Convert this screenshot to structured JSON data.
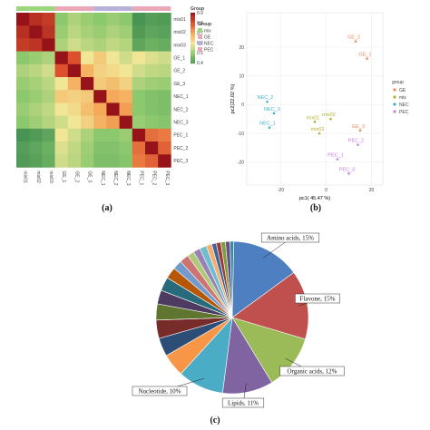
{
  "panels": [
    "(a)",
    "(b)",
    "(c)"
  ],
  "heatmap": {
    "rows": [
      "mix01",
      "mix02",
      "mix03",
      "GE_1",
      "GE_2",
      "GE_3",
      "NEC_1",
      "NEC_2",
      "NEC_3",
      "PEC_1",
      "PEC_2",
      "PEC_3"
    ],
    "cols": [
      "mix01",
      "mix02",
      "mix03",
      "GE_1",
      "GE_2",
      "GE_3",
      "NEC_1",
      "NEC_2",
      "NEC_3",
      "PEC_1",
      "PEC_2",
      "PEC_3"
    ],
    "group_colors": [
      "#9cd67c",
      "#9cd67c",
      "#9cd67c",
      "#e8a8b8",
      "#e8a8b8",
      "#e8a8b8",
      "#b7b0d8",
      "#b7b0d8",
      "#b7b0d8",
      "#e8a8b8",
      "#e8a8b8",
      "#e8a8b8"
    ],
    "matrix": [
      [
        1.0,
        0.93,
        0.9,
        0.4,
        0.45,
        0.42,
        0.4,
        0.42,
        0.4,
        0.25,
        0.28,
        0.27
      ],
      [
        0.93,
        1.0,
        0.92,
        0.42,
        0.47,
        0.44,
        0.42,
        0.45,
        0.43,
        0.27,
        0.3,
        0.29
      ],
      [
        0.9,
        0.92,
        1.0,
        0.45,
        0.5,
        0.47,
        0.45,
        0.48,
        0.46,
        0.3,
        0.33,
        0.32
      ],
      [
        0.4,
        0.42,
        0.45,
        1.0,
        0.85,
        0.55,
        0.62,
        0.55,
        0.5,
        0.55,
        0.52,
        0.5
      ],
      [
        0.45,
        0.47,
        0.5,
        0.85,
        1.0,
        0.68,
        0.6,
        0.58,
        0.55,
        0.5,
        0.48,
        0.47
      ],
      [
        0.42,
        0.44,
        0.47,
        0.55,
        0.68,
        1.0,
        0.62,
        0.65,
        0.6,
        0.45,
        0.43,
        0.42
      ],
      [
        0.4,
        0.42,
        0.45,
        0.62,
        0.6,
        0.62,
        1.0,
        0.7,
        0.68,
        0.4,
        0.38,
        0.37
      ],
      [
        0.42,
        0.45,
        0.48,
        0.55,
        0.58,
        0.65,
        0.7,
        1.0,
        0.72,
        0.4,
        0.38,
        0.37
      ],
      [
        0.4,
        0.43,
        0.46,
        0.5,
        0.55,
        0.6,
        0.68,
        0.72,
        1.0,
        0.42,
        0.4,
        0.39
      ],
      [
        0.25,
        0.27,
        0.3,
        0.55,
        0.5,
        0.45,
        0.4,
        0.4,
        0.42,
        1.0,
        0.8,
        0.78
      ],
      [
        0.28,
        0.3,
        0.33,
        0.52,
        0.48,
        0.43,
        0.38,
        0.38,
        0.4,
        0.8,
        1.0,
        0.82
      ],
      [
        0.27,
        0.29,
        0.32,
        0.5,
        0.47,
        0.42,
        0.37,
        0.37,
        0.39,
        0.78,
        0.82,
        1.0
      ]
    ],
    "colorbar_ticks": [
      "0.9",
      "0.8",
      "0.7",
      "0.6",
      "0.5",
      "0.4"
    ],
    "group_legend_title": "Group",
    "group_legend_items": [
      {
        "label": "mix",
        "color": "#9cd67c"
      },
      {
        "label": "GE",
        "color": "#e8a8b8"
      },
      {
        "label": "NEC",
        "color": "#b7b0d8"
      },
      {
        "label": "PEC",
        "color": "#e8a8b8"
      }
    ],
    "colorbar_title": "Group"
  },
  "pca": {
    "xlabel": "pc1( 45.47 %)",
    "ylabel": "pc2(22.02 %)",
    "xlim": [
      -35,
      25
    ],
    "ylim": [
      -28,
      32
    ],
    "xticks": [
      -20,
      0,
      20
    ],
    "yticks": [
      20,
      10,
      0,
      -10,
      -20
    ],
    "legend_title": "group",
    "groups": [
      {
        "name": "GE",
        "color": "#f08a5a",
        "points": [
          {
            "label": "GE_2",
            "x": 13,
            "y": 22
          },
          {
            "label": "GE_1",
            "x": 18,
            "y": 16
          },
          {
            "label": "GE_3",
            "x": 15,
            "y": -9
          }
        ]
      },
      {
        "name": "mix",
        "color": "#b3b12d",
        "points": [
          {
            "label": "mix01",
            "x": -5,
            "y": -6
          },
          {
            "label": "mix02",
            "x": 2,
            "y": -5
          },
          {
            "label": "mix03",
            "x": -3,
            "y": -10
          }
        ]
      },
      {
        "name": "NEC",
        "color": "#3fb2c8",
        "points": [
          {
            "label": "NEC_2",
            "x": -26,
            "y": 1
          },
          {
            "label": "NEC_3",
            "x": -23,
            "y": -3
          },
          {
            "label": "NEC_1",
            "x": -25,
            "y": -8
          }
        ]
      },
      {
        "name": "PEC",
        "color": "#c87fe0",
        "points": [
          {
            "label": "PEC_2",
            "x": 14,
            "y": -14
          },
          {
            "label": "PEC_1",
            "x": 5,
            "y": -19
          },
          {
            "label": "PEC_3",
            "x": 10,
            "y": -24
          }
        ]
      }
    ]
  },
  "chart_data": {
    "type": "pie",
    "labels": [
      "Amino acids",
      "Flavone",
      "Organic acids",
      "Lipids",
      "Nucleotide"
    ],
    "values": [
      15,
      15,
      12,
      11,
      10
    ],
    "label_texts": [
      "Amino acids, 15%",
      "Flavone, 15%",
      "Organic acids, 12%",
      "Lipids, 11%",
      "Nucleotide, 10%"
    ],
    "colors": [
      "#4e7fc0",
      "#c0504d",
      "#9bbb59",
      "#8064a2",
      "#4bacc6"
    ],
    "other_slices": [
      {
        "value": 5,
        "color": "#f79646"
      },
      {
        "value": 4,
        "color": "#2c4d75"
      },
      {
        "value": 4,
        "color": "#772c2a"
      },
      {
        "value": 3.5,
        "color": "#5f7530"
      },
      {
        "value": 3,
        "color": "#4d3b62"
      },
      {
        "value": 3,
        "color": "#276a7c"
      },
      {
        "value": 2.5,
        "color": "#b65708"
      },
      {
        "value": 2,
        "color": "#729aca"
      },
      {
        "value": 2,
        "color": "#cd7371"
      },
      {
        "value": 1.5,
        "color": "#afc97a"
      },
      {
        "value": 1.5,
        "color": "#9983b5"
      },
      {
        "value": 1.5,
        "color": "#6fbdd1"
      },
      {
        "value": 1.2,
        "color": "#f9ab6b"
      },
      {
        "value": 1,
        "color": "#3a679c"
      },
      {
        "value": 1,
        "color": "#9e3a38"
      },
      {
        "value": 1,
        "color": "#7e9c40"
      },
      {
        "value": 1,
        "color": "#664f83"
      },
      {
        "value": 0.8,
        "color": "#358da5"
      }
    ]
  }
}
